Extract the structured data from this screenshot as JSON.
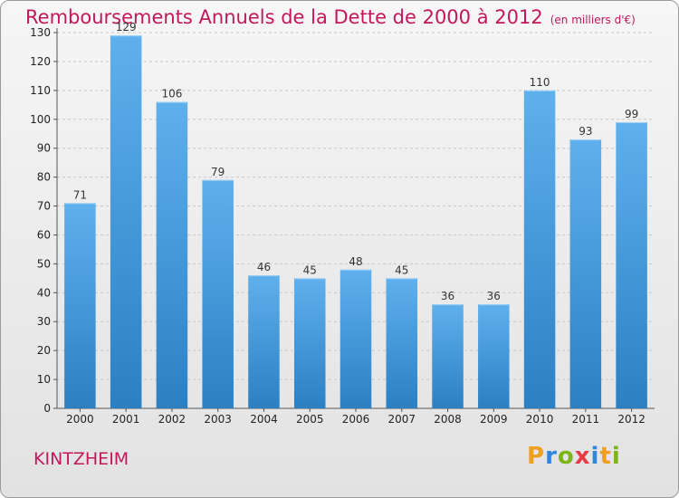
{
  "title": "Remboursements Annuels de la Dette de 2000 à 2012",
  "unit": "(en milliers d'€)",
  "commune": "KINTZHEIM",
  "logo": {
    "letters": [
      "P",
      "r",
      "o",
      "x",
      "i",
      "t",
      "i"
    ],
    "colors": [
      "#f0a020",
      "#2e86de",
      "#7cb518",
      "#e63946",
      "#2e86de",
      "#f0a020",
      "#7cb518"
    ]
  },
  "colors": {
    "title": "#c2185b",
    "bar_top": "#5fb0ec",
    "bar_bottom": "#2b80c4"
  },
  "chart_data": {
    "type": "bar",
    "title": "Remboursements Annuels de la Dette de 2000 à 2012",
    "xlabel": "",
    "ylabel": "en milliers d'€",
    "categories": [
      "2000",
      "2001",
      "2002",
      "2003",
      "2004",
      "2005",
      "2006",
      "2007",
      "2008",
      "2009",
      "2010",
      "2011",
      "2012"
    ],
    "values": [
      71,
      129,
      106,
      79,
      46,
      45,
      48,
      45,
      36,
      36,
      110,
      93,
      99
    ],
    "ylim": [
      0,
      130
    ],
    "yticks": [
      0,
      10,
      20,
      30,
      40,
      50,
      60,
      70,
      80,
      90,
      100,
      110,
      120,
      130
    ],
    "grid": true
  }
}
